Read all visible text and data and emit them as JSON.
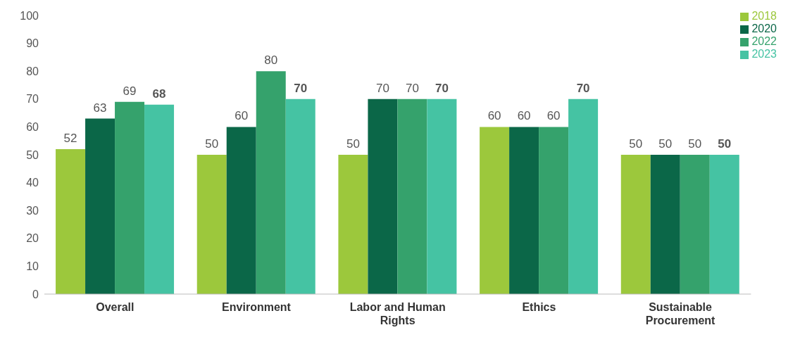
{
  "chart_data": {
    "type": "bar",
    "categories": [
      "Overall",
      "Environment",
      "Labor and Human Rights",
      "Ethics",
      "Sustainable Procurement"
    ],
    "series": [
      {
        "name": "2018",
        "color": "#9cc83c",
        "values": [
          52,
          50,
          50,
          60,
          50
        ]
      },
      {
        "name": "2020",
        "color": "#0b6748",
        "values": [
          63,
          60,
          70,
          60,
          50
        ]
      },
      {
        "name": "2022",
        "color": "#35a26c",
        "values": [
          69,
          80,
          70,
          60,
          50
        ]
      },
      {
        "name": "2023",
        "color": "#45c3a3",
        "values": [
          68,
          70,
          70,
          70,
          50
        ]
      }
    ],
    "ylim": [
      0,
      100
    ],
    "yticks": [
      0,
      10,
      20,
      30,
      40,
      50,
      60,
      70,
      80,
      90,
      100
    ],
    "grid": false,
    "legend": "top right",
    "data_labels": true
  }
}
